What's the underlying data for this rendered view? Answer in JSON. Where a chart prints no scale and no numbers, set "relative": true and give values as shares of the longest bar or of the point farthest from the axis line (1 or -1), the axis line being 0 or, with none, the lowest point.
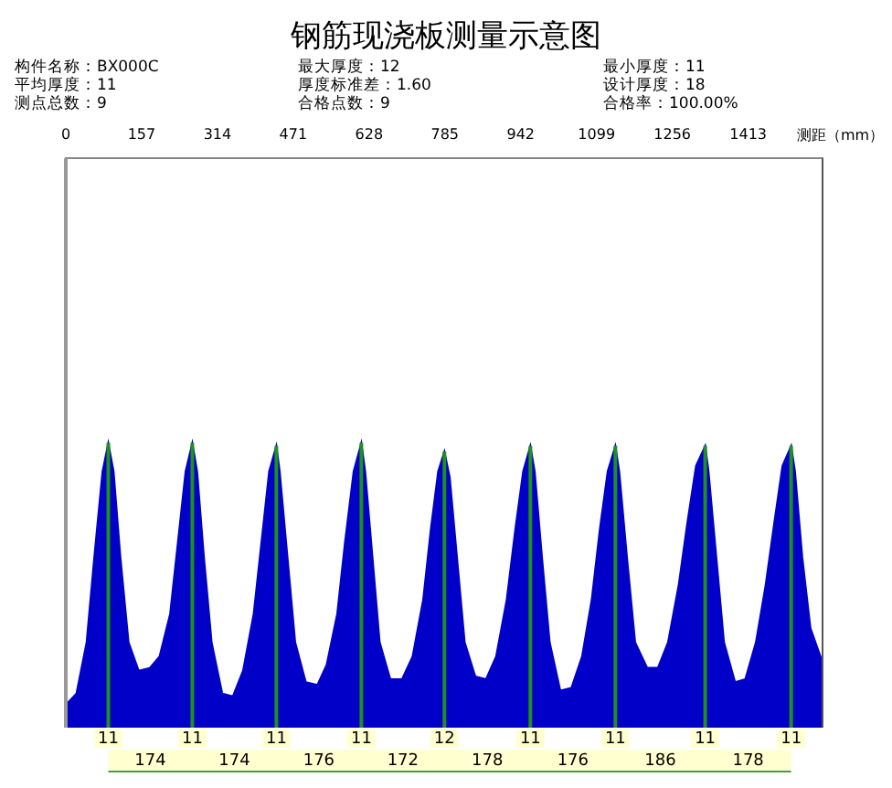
{
  "chart_data": {
    "type": "area",
    "title": "钢筋现浇板测量示意图",
    "xlabel": "测距（mm）",
    "relative": true,
    "color": "#0000c8",
    "x": [
      0,
      22,
      43,
      59,
      76,
      88,
      99,
      113,
      130,
      151,
      174,
      194,
      216,
      232,
      248,
      262,
      272,
      286,
      302,
      324,
      346,
      367,
      389,
      405,
      421,
      436,
      443,
      459,
      475,
      497,
      521,
      540,
      562,
      578,
      596,
      612,
      620,
      635,
      650,
      672,
      696,
      718,
      740,
      756,
      771,
      784,
      795,
      810,
      826,
      848,
      870,
      891,
      913,
      931,
      947,
      962,
      971,
      986,
      1002,
      1024,
      1047,
      1069,
      1089,
      1106,
      1122,
      1138,
      1146,
      1162,
      1179,
      1204,
      1226,
      1247,
      1269,
      1287,
      1305,
      1324,
      1331,
      1347,
      1363,
      1386,
      1407,
      1429,
      1449,
      1467,
      1484,
      1502,
      1510,
      1525,
      1542,
      1567
    ],
    "values": [
      0.08,
      0.12,
      0.3,
      0.6,
      0.9,
      1,
      0.9,
      0.6,
      0.3,
      0.2,
      0.21,
      0.25,
      0.4,
      0.65,
      0.9,
      1,
      0.9,
      0.6,
      0.3,
      0.12,
      0.11,
      0.2,
      0.4,
      0.65,
      0.9,
      0.99,
      0.9,
      0.6,
      0.3,
      0.16,
      0.15,
      0.22,
      0.4,
      0.65,
      0.9,
      1,
      0.9,
      0.6,
      0.3,
      0.17,
      0.17,
      0.25,
      0.45,
      0.7,
      0.9,
      0.97,
      0.88,
      0.6,
      0.3,
      0.18,
      0.17,
      0.25,
      0.45,
      0.7,
      0.9,
      0.99,
      0.9,
      0.6,
      0.3,
      0.13,
      0.14,
      0.25,
      0.45,
      0.7,
      0.9,
      0.99,
      0.9,
      0.6,
      0.3,
      0.21,
      0.21,
      0.3,
      0.5,
      0.72,
      0.92,
      0.99,
      0.9,
      0.6,
      0.3,
      0.16,
      0.17,
      0.3,
      0.5,
      0.72,
      0.92,
      0.99,
      0.9,
      0.6,
      0.35,
      0.23
    ],
    "xlim": [
      0,
      1567
    ],
    "xticks": [
      0,
      157,
      314,
      471,
      628,
      785,
      942,
      1099,
      1256,
      1413
    ],
    "ref_lines": [
      {
        "axis": "x",
        "value": 88,
        "color": "#1f8f1f"
      },
      {
        "axis": "x",
        "value": 262,
        "color": "#1f8f1f"
      },
      {
        "axis": "x",
        "value": 436,
        "color": "#1f8f1f"
      },
      {
        "axis": "x",
        "value": 612,
        "color": "#1f8f1f"
      },
      {
        "axis": "x",
        "value": 784,
        "color": "#1f8f1f"
      },
      {
        "axis": "x",
        "value": 962,
        "color": "#1f8f1f"
      },
      {
        "axis": "x",
        "value": 1138,
        "color": "#1f8f1f"
      },
      {
        "axis": "x",
        "value": 1324,
        "color": "#1f8f1f"
      },
      {
        "axis": "x",
        "value": 1502,
        "color": "#1f8f1f"
      }
    ],
    "annotations": [
      "构件名称：BX000C",
      "最大厚度：12",
      "最小厚度：11",
      "平均厚度：11",
      "厚度标准差：1.60",
      "设计厚度：18",
      "测点总数：9",
      "合格点数：9",
      "合格率：100.00%",
      {
        "text": "11",
        "x": 88
      },
      {
        "text": "11",
        "x": 262
      },
      {
        "text": "11",
        "x": 436
      },
      {
        "text": "11",
        "x": 612
      },
      {
        "text": "12",
        "x": 784
      },
      {
        "text": "11",
        "x": 962
      },
      {
        "text": "11",
        "x": 1138
      },
      {
        "text": "11",
        "x": 1324
      },
      {
        "text": "11",
        "x": 1502
      },
      "174",
      "174",
      "176",
      "172",
      "178",
      "176",
      "186",
      "178"
    ],
    "grid": false,
    "legend": false
  }
}
